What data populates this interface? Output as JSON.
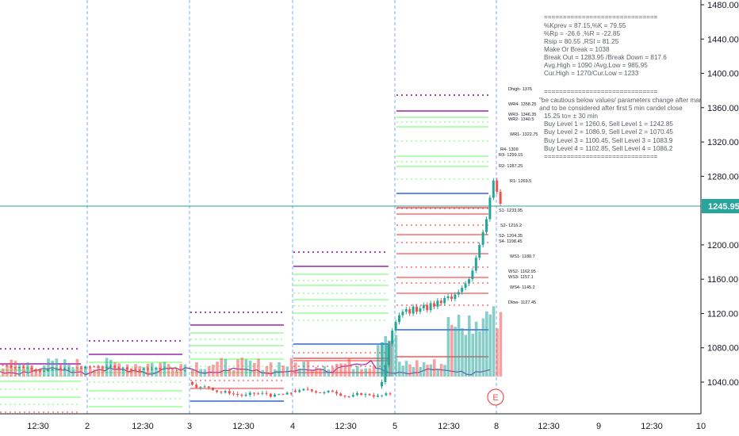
{
  "colors": {
    "bull": "#26a69a",
    "bear": "#ef5350",
    "purple": "#9c27b0",
    "green": "#66ff66",
    "red": "#ff5252",
    "blue": "#2962ff",
    "teal": "#26a69a",
    "pink": "#f48fb1",
    "session": "#5b9cf6"
  },
  "price_axis": {
    "ticks": [
      "1480.00",
      "1440.00",
      "1400.00",
      "1360.00",
      "1320.00",
      "1280.00",
      "1200.00",
      "1160.00",
      "1120.00",
      "1080.00",
      "1040.00"
    ],
    "current_price": "1245.95"
  },
  "time_axis": {
    "ticks": [
      "12:30",
      "2",
      "12:30",
      "3",
      "12:30",
      "4",
      "12:30",
      "5",
      "12:30",
      "8",
      "12:30",
      "9",
      "12:30",
      "10"
    ]
  },
  "level_labels": [
    "Dhigh- 1376",
    "WR4- 1358.25",
    "WR3- 1346.35",
    "WR2- 1340.5",
    "WR1- 1322.75",
    "R4- 1309",
    "R3- 1299.15",
    "R2- 1287.25",
    "R1- 1269.5",
    "S1- 1233.95",
    "S2- 1216.2",
    "S3- 1204.35",
    "S4- 1198.45",
    "WS1- 1180.7",
    "WS2- 1162.95",
    "WS3- 1157.1",
    "WS4- 1145.2",
    "Dlow- 1127.45"
  ],
  "info_box": {
    "lines": [
      "==============================",
      "%Kprev = 87.15,%K = 79.55",
      "%Rp = -26.6 ,%R = -22.85",
      "Rsip = 80.55 ,RSI = 81.25",
      "Make Or Break = 1038",
      "Break Out = 1283.95   /Break Down = 817.6",
      "Avg.High = 1090   /Avg.Low = 985.95",
      "Cur.High = 1270/Cur.Low = 1233",
      "",
      "==============================",
      "\"be cautious below values/ parameters change after market opening",
      "and to be considered after first 5 min candel close",
      "   15.25  to= ± 30 min",
      "   Buy Level 1 = 1260.6, Sell Level 1 = 1242.85",
      "   Buy Level 2 = 1086.9, Sell Level 2 = 1070.45",
      "   Buy Level 3 = 1100.45, Sell Level 3 = 1083.9",
      "   Buy Level 4 = 1102.85, Sell Level 4 = 1086.2",
      "=============================="
    ]
  },
  "earnings_marker": "E"
}
